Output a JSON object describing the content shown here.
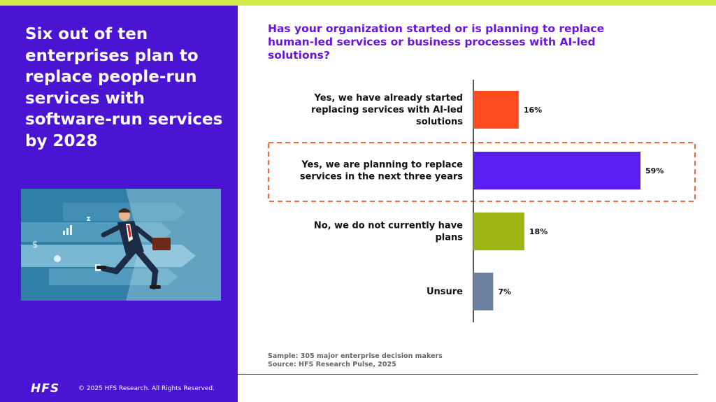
{
  "headline": "Six out of ten enterprises plan to replace people-run services with software-run services by 2028",
  "question": "Has your organization started or is planning to replace human-led services or business processes with AI-led solutions?",
  "sample": "Sample: 305 major enterprise decision makers",
  "source": "Source: HFS Research Pulse, 2025",
  "footer": {
    "logo": "HFS",
    "copyright": "© 2025 HFS Research. All Rights Reserved."
  },
  "illustration": {
    "icons": [
      "dollar-icon",
      "pie-chart-icon",
      "hourglass-icon",
      "bar-chart-icon",
      "document-icon"
    ]
  },
  "chart_data": {
    "type": "bar",
    "orientation": "horizontal",
    "categories": [
      [
        "Yes, we have already started",
        "replacing services with AI-led",
        "solutions"
      ],
      [
        "Yes, we are planning to replace",
        "services in the next three years"
      ],
      [
        "No, we do not currently have",
        "plans"
      ],
      [
        "Unsure"
      ]
    ],
    "values": [
      16,
      59,
      18,
      7
    ],
    "value_labels": [
      "16%",
      "59%",
      "18%",
      "7%"
    ],
    "unit": "%",
    "colors": [
      "#ff4b1f",
      "#5b1ef0",
      "#9fb514",
      "#6b7f9e"
    ],
    "highlighted_index": 1,
    "highlight_color": "#f26a3c",
    "xlim": [
      0,
      60
    ],
    "grid": false,
    "legend": "none"
  }
}
